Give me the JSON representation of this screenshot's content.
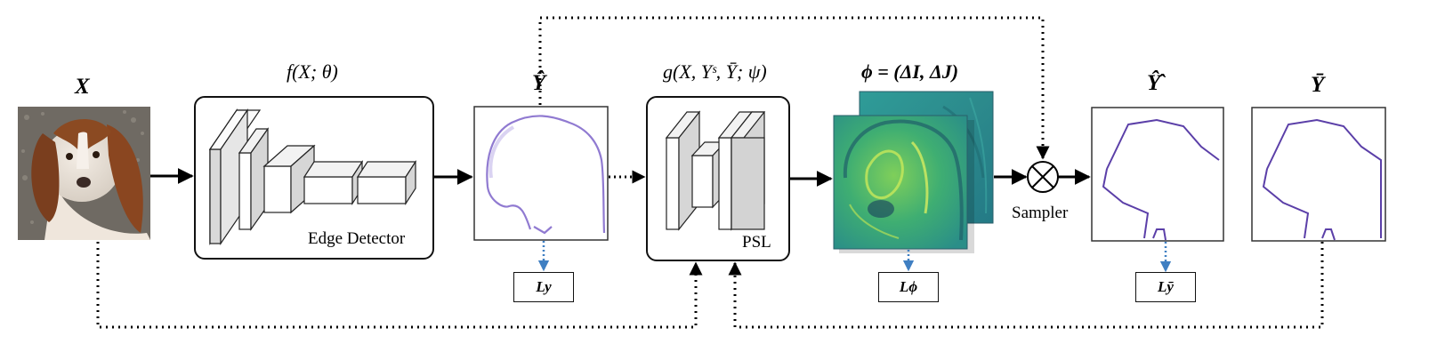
{
  "labels": {
    "input_symbol": "X",
    "edge_fn": "f(X; θ)",
    "edge_detector": "Edge Detector",
    "pred_symbol": "Ŷ",
    "psl_fn": "g(X, Yˢ, Ȳ; ψ)",
    "psl": "PSL",
    "phi_eq": "ϕ = (ΔI, ΔJ)",
    "sampler": "Sampler",
    "refined_symbol": "Ŷ̂",
    "gt_symbol": "Ȳ",
    "loss_y": "Ly",
    "loss_phi": "Lϕ",
    "loss_ybar": "Lȳ"
  },
  "colors": {
    "edge_purple": "#5b3fa8",
    "loss_arrow_blue": "#3f7fc2",
    "field_teal": "#2a8a8a",
    "field_green": "#5cc26a"
  }
}
